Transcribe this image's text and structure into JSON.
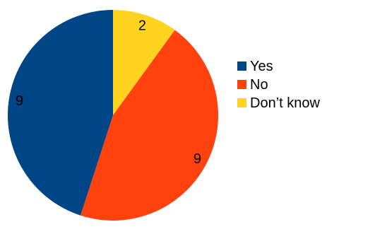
{
  "colors": {
    "background": "#ffffff",
    "yes": "#004586",
    "no": "#ff420e",
    "dont_know": "#ffd320"
  },
  "chart_data": {
    "type": "pie",
    "title": "",
    "categories": [
      "Yes",
      "No",
      "Don’t know"
    ],
    "values": [
      9,
      9,
      2
    ],
    "colors": [
      "#004586",
      "#ff420e",
      "#ffd320"
    ],
    "start": "12 o'clock",
    "direction": "counterclockwise from the Yes slice",
    "legend": "right",
    "data_labels": [
      "9",
      "9",
      "2"
    ]
  }
}
